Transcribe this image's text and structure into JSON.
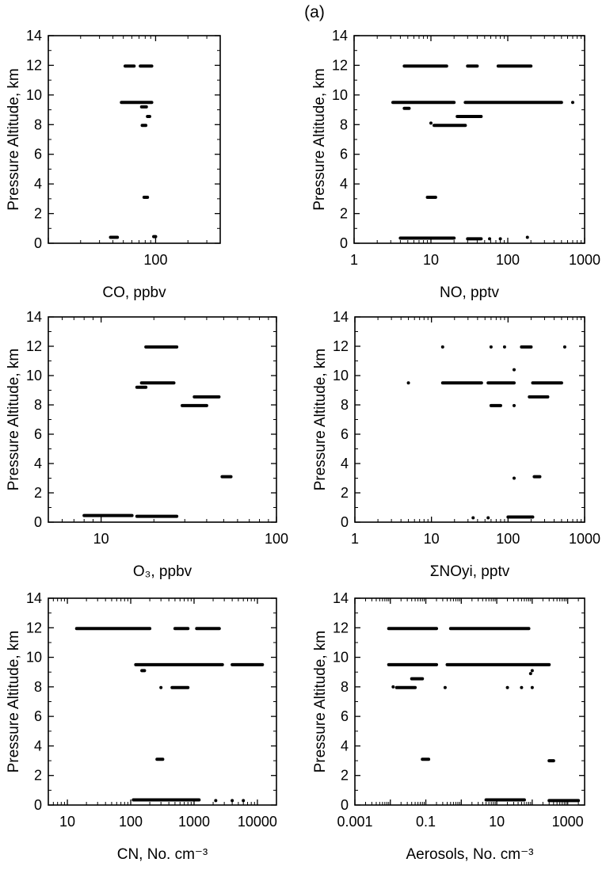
{
  "figure_label": "(a)",
  "chart_data": [
    {
      "type": "scatter",
      "xlabel": "CO, ppbv",
      "ylabel": "Pressure Altitude, km",
      "xscale": "log",
      "xlim": [
        10,
        400
      ],
      "ylim": [
        0,
        14
      ],
      "xticks": [
        100
      ],
      "xtick_labels": [
        "100"
      ],
      "yticks": [
        0,
        2,
        4,
        6,
        8,
        10,
        12,
        14
      ],
      "ytick_labels": [
        "0",
        "2",
        "4",
        "6",
        "8",
        "10",
        "12",
        "14"
      ],
      "segments": [
        {
          "x": [
            38,
            44
          ],
          "y": 0.4
        },
        {
          "x": [
            52,
            63
          ],
          "y": 11.95
        },
        {
          "x": [
            72,
            92
          ],
          "y": 11.95
        },
        {
          "x": [
            48,
            92
          ],
          "y": 9.5
        },
        {
          "x": [
            74,
            82
          ],
          "y": 9.2
        },
        {
          "x": [
            75,
            81
          ],
          "y": 7.95
        },
        {
          "x": [
            84,
            88
          ],
          "y": 8.55
        },
        {
          "x": [
            78,
            84
          ],
          "y": 3.1
        },
        {
          "x": [
            96,
            100
          ],
          "y": 0.45
        }
      ]
    },
    {
      "type": "scatter",
      "xlabel": "NO, pptv",
      "ylabel": "Pressure Altitude, km",
      "xscale": "log",
      "xlim": [
        1,
        1000
      ],
      "ylim": [
        0,
        14
      ],
      "xticks": [
        1,
        10,
        100,
        1000
      ],
      "xtick_labels": [
        "1",
        "10",
        "100",
        "1000"
      ],
      "yticks": [
        0,
        2,
        4,
        6,
        8,
        10,
        12,
        14
      ],
      "ytick_labels": [
        "0",
        "2",
        "4",
        "6",
        "8",
        "10",
        "12",
        "14"
      ],
      "segments": [
        {
          "x": [
            4.5,
            16
          ],
          "y": 11.95
        },
        {
          "x": [
            30,
            40
          ],
          "y": 11.95
        },
        {
          "x": [
            75,
            200
          ],
          "y": 11.95
        },
        {
          "x": [
            3.2,
            20
          ],
          "y": 9.5
        },
        {
          "x": [
            28,
            500
          ],
          "y": 9.5
        },
        {
          "x": [
            4.5,
            5.2
          ],
          "y": 9.1
        },
        {
          "x": [
            11,
            28
          ],
          "y": 7.95
        },
        {
          "x": [
            22,
            45
          ],
          "y": 8.55
        },
        {
          "x": [
            9,
            11.5
          ],
          "y": 3.1
        },
        {
          "x": [
            4,
            20
          ],
          "y": 0.35
        },
        {
          "x": [
            30,
            45
          ],
          "y": 0.3
        }
      ],
      "points": [
        {
          "x": 10,
          "y": 8.1
        },
        {
          "x": 700,
          "y": 9.5
        },
        {
          "x": 58,
          "y": 0.3
        },
        {
          "x": 80,
          "y": 0.3
        },
        {
          "x": 180,
          "y": 0.4
        }
      ]
    },
    {
      "type": "scatter",
      "xlabel": "O₃, ppbv",
      "ylabel": "Pressure Altitude, km",
      "xscale": "log",
      "xlim": [
        5,
        100
      ],
      "ylim": [
        0,
        14
      ],
      "xticks": [
        10,
        100
      ],
      "xtick_labels": [
        "10",
        "100"
      ],
      "yticks": [
        0,
        2,
        4,
        6,
        8,
        10,
        12,
        14
      ],
      "ytick_labels": [
        "0",
        "2",
        "4",
        "6",
        "8",
        "10",
        "12",
        "14"
      ],
      "segments": [
        {
          "x": [
            18,
            27
          ],
          "y": 11.95
        },
        {
          "x": [
            17,
            26
          ],
          "y": 9.5
        },
        {
          "x": [
            16,
            18
          ],
          "y": 9.2
        },
        {
          "x": [
            29,
            40
          ],
          "y": 7.95
        },
        {
          "x": [
            34,
            47
          ],
          "y": 8.55
        },
        {
          "x": [
            49,
            55
          ],
          "y": 3.1
        },
        {
          "x": [
            8,
            15
          ],
          "y": 0.45
        },
        {
          "x": [
            16,
            27
          ],
          "y": 0.4
        }
      ]
    },
    {
      "type": "scatter",
      "xlabel": "ΣNOyi, pptv",
      "ylabel": "Pressure Altitude, km",
      "xscale": "log",
      "xlim": [
        1,
        1000
      ],
      "ylim": [
        0,
        14
      ],
      "xticks": [
        1,
        10,
        100,
        1000
      ],
      "xtick_labels": [
        "1",
        "10",
        "100",
        "1000"
      ],
      "yticks": [
        0,
        2,
        4,
        6,
        8,
        10,
        12,
        14
      ],
      "ytick_labels": [
        "0",
        "2",
        "4",
        "6",
        "8",
        "10",
        "12",
        "14"
      ],
      "segments": [
        {
          "x": [
            14,
            45
          ],
          "y": 9.5
        },
        {
          "x": [
            55,
            120
          ],
          "y": 9.5
        },
        {
          "x": [
            210,
            500
          ],
          "y": 9.5
        },
        {
          "x": [
            190,
            330
          ],
          "y": 8.55
        },
        {
          "x": [
            60,
            80
          ],
          "y": 7.95
        },
        {
          "x": [
            150,
            200
          ],
          "y": 11.95
        },
        {
          "x": [
            220,
            260
          ],
          "y": 3.1
        },
        {
          "x": [
            100,
            210
          ],
          "y": 0.35
        }
      ],
      "points": [
        {
          "x": 5,
          "y": 9.5
        },
        {
          "x": 14,
          "y": 11.95
        },
        {
          "x": 60,
          "y": 11.95
        },
        {
          "x": 90,
          "y": 11.95
        },
        {
          "x": 550,
          "y": 11.95
        },
        {
          "x": 120,
          "y": 10.4
        },
        {
          "x": 120,
          "y": 7.95
        },
        {
          "x": 120,
          "y": 3.0
        },
        {
          "x": 35,
          "y": 0.3
        },
        {
          "x": 55,
          "y": 0.3
        }
      ]
    },
    {
      "type": "scatter",
      "xlabel": "CN, No. cm⁻³",
      "ylabel": "Pressure Altitude, km",
      "xscale": "log",
      "xlim": [
        5,
        20000
      ],
      "ylim": [
        0,
        14
      ],
      "xticks": [
        10,
        100,
        1000,
        10000
      ],
      "xtick_labels": [
        "10",
        "100",
        "1000",
        "10000"
      ],
      "yticks": [
        0,
        2,
        4,
        6,
        8,
        10,
        12,
        14
      ],
      "ytick_labels": [
        "0",
        "2",
        "4",
        "6",
        "8",
        "10",
        "12",
        "14"
      ],
      "segments": [
        {
          "x": [
            14,
            200
          ],
          "y": 11.95
        },
        {
          "x": [
            500,
            800
          ],
          "y": 11.95
        },
        {
          "x": [
            1100,
            2500
          ],
          "y": 11.95
        },
        {
          "x": [
            120,
            2800
          ],
          "y": 9.5
        },
        {
          "x": [
            4000,
            12000
          ],
          "y": 9.5
        },
        {
          "x": [
            150,
            165
          ],
          "y": 9.1
        },
        {
          "x": [
            450,
            800
          ],
          "y": 7.95
        },
        {
          "x": [
            260,
            320
          ],
          "y": 3.1
        },
        {
          "x": [
            110,
            1200
          ],
          "y": 0.35
        }
      ],
      "points": [
        {
          "x": 300,
          "y": 7.95
        },
        {
          "x": 2200,
          "y": 0.3
        },
        {
          "x": 4000,
          "y": 0.3
        },
        {
          "x": 6000,
          "y": 0.3
        }
      ]
    },
    {
      "type": "scatter",
      "xlabel": "Aerosols, No. cm⁻³",
      "ylabel": "Pressure Altitude, km",
      "xscale": "log",
      "xlim": [
        0.001,
        3000
      ],
      "ylim": [
        0,
        14
      ],
      "xticks": [
        0.001,
        0.1,
        10,
        1000
      ],
      "xtick_labels": [
        "0.001",
        "0.1",
        "10",
        "1000"
      ],
      "yticks": [
        0,
        2,
        4,
        6,
        8,
        10,
        12,
        14
      ],
      "ytick_labels": [
        "0",
        "2",
        "4",
        "6",
        "8",
        "10",
        "12",
        "14"
      ],
      "segments": [
        {
          "x": [
            0.009,
            0.2
          ],
          "y": 11.95
        },
        {
          "x": [
            0.5,
            80
          ],
          "y": 11.95
        },
        {
          "x": [
            0.009,
            0.2
          ],
          "y": 9.5
        },
        {
          "x": [
            0.4,
            300
          ],
          "y": 9.5
        },
        {
          "x": [
            0.04,
            0.08
          ],
          "y": 8.55
        },
        {
          "x": [
            0.015,
            0.05
          ],
          "y": 7.95
        },
        {
          "x": [
            0.08,
            0.12
          ],
          "y": 3.1
        },
        {
          "x": [
            300,
            400
          ],
          "y": 3.0
        },
        {
          "x": [
            5,
            60
          ],
          "y": 0.35
        },
        {
          "x": [
            300,
            2000
          ],
          "y": 0.3
        }
      ],
      "points": [
        {
          "x": 0.012,
          "y": 8.0
        },
        {
          "x": 0.35,
          "y": 7.95
        },
        {
          "x": 20,
          "y": 7.95
        },
        {
          "x": 50,
          "y": 7.95
        },
        {
          "x": 100,
          "y": 7.95
        },
        {
          "x": 100,
          "y": 9.1
        },
        {
          "x": 90,
          "y": 8.9
        }
      ]
    }
  ]
}
